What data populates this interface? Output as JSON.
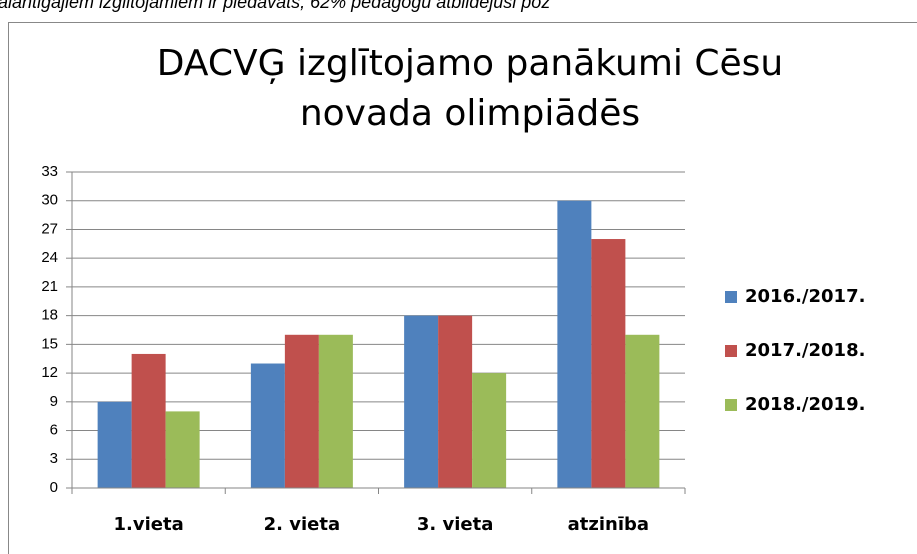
{
  "header_text": "alantīgajiem izglītojamiem ir piedāvāts, 62% pedagogu atbildējuši poz",
  "chart_data": {
    "type": "bar",
    "title": "DACVĢ izglītojamo panākumi Cēsu novada olimpiādēs",
    "categories": [
      "1.vieta",
      "2. vieta",
      "3. vieta",
      "atzinība"
    ],
    "series": [
      {
        "name": "2016./2017.",
        "color": "#4f81bd",
        "values": [
          9,
          13,
          18,
          30
        ]
      },
      {
        "name": "2017./2018.",
        "color": "#c0504d",
        "values": [
          14,
          16,
          18,
          26
        ]
      },
      {
        "name": "2018./2019.",
        "color": "#9bbb59",
        "values": [
          8,
          16,
          12,
          16
        ]
      }
    ],
    "ylim": [
      0,
      33
    ],
    "yticks": [
      0,
      3,
      6,
      9,
      12,
      15,
      18,
      21,
      24,
      27,
      30,
      33
    ],
    "grid": true,
    "legend": "right"
  }
}
